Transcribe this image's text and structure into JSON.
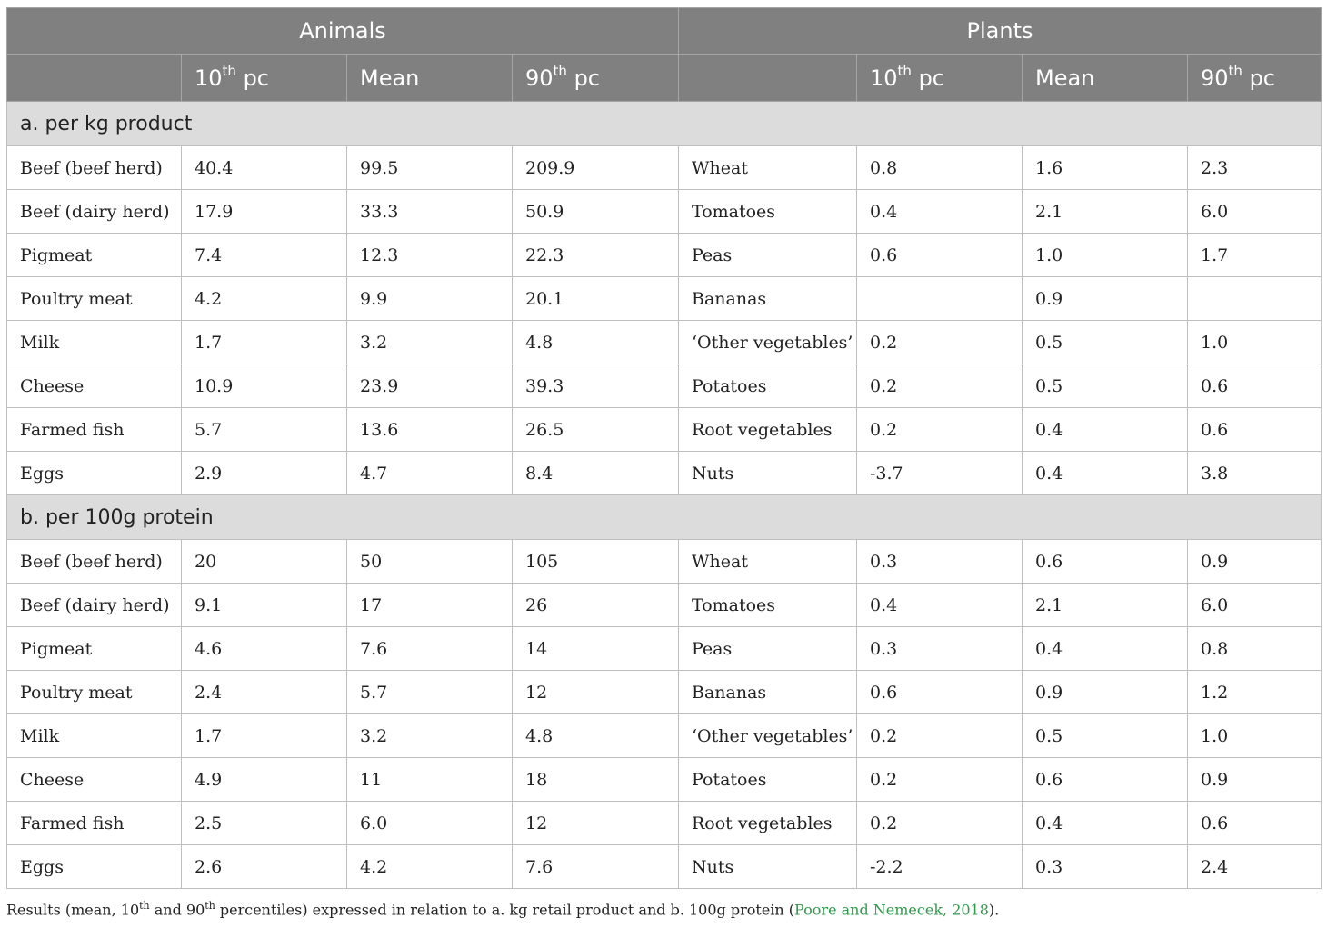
{
  "header": {
    "groups": [
      "Animals",
      "Plants"
    ],
    "columns": {
      "p10_base": "10",
      "p10_sup": "th",
      "p10_tail": " pc",
      "mean": "Mean",
      "p90_base": "90",
      "p90_sup": "th",
      "p90_tail": " pc"
    }
  },
  "sections": [
    {
      "title": "a. per kg product",
      "rows": [
        {
          "animal": "Beef (beef herd)",
          "a10": "40.4",
          "amean": "99.5",
          "a90": "209.9",
          "plant": "Wheat",
          "p10": "0.8",
          "pmean": "1.6",
          "p90": "2.3"
        },
        {
          "animal": "Beef (dairy herd)",
          "a10": "17.9",
          "amean": "33.3",
          "a90": "50.9",
          "plant": "Tomatoes",
          "p10": "0.4",
          "pmean": "2.1",
          "p90": "6.0"
        },
        {
          "animal": "Pigmeat",
          "a10": "7.4",
          "amean": "12.3",
          "a90": "22.3",
          "plant": "Peas",
          "p10": "0.6",
          "pmean": "1.0",
          "p90": "1.7"
        },
        {
          "animal": "Poultry meat",
          "a10": "4.2",
          "amean": "9.9",
          "a90": "20.1",
          "plant": "Bananas",
          "p10": "",
          "pmean": "0.9",
          "p90": ""
        },
        {
          "animal": "Milk",
          "a10": "1.7",
          "amean": "3.2",
          "a90": "4.8",
          "plant": "‘Other vegetables’",
          "p10": "0.2",
          "pmean": "0.5",
          "p90": "1.0"
        },
        {
          "animal": "Cheese",
          "a10": "10.9",
          "amean": "23.9",
          "a90": "39.3",
          "plant": "Potatoes",
          "p10": "0.2",
          "pmean": "0.5",
          "p90": "0.6"
        },
        {
          "animal": "Farmed fish",
          "a10": "5.7",
          "amean": "13.6",
          "a90": "26.5",
          "plant": "Root vegetables",
          "p10": "0.2",
          "pmean": "0.4",
          "p90": "0.6"
        },
        {
          "animal": "Eggs",
          "a10": "2.9",
          "amean": "4.7",
          "a90": "8.4",
          "plant": "Nuts",
          "p10": "-3.7",
          "pmean": "0.4",
          "p90": "3.8"
        }
      ]
    },
    {
      "title": "b. per 100g protein",
      "rows": [
        {
          "animal": "Beef (beef herd)",
          "a10": "20",
          "amean": "50",
          "a90": "105",
          "plant": "Wheat",
          "p10": "0.3",
          "pmean": "0.6",
          "p90": "0.9"
        },
        {
          "animal": "Beef (dairy herd)",
          "a10": "9.1",
          "amean": "17",
          "a90": "26",
          "plant": "Tomatoes",
          "p10": "0.4",
          "pmean": "2.1",
          "p90": "6.0"
        },
        {
          "animal": "Pigmeat",
          "a10": "4.6",
          "amean": "7.6",
          "a90": "14",
          "plant": "Peas",
          "p10": "0.3",
          "pmean": "0.4",
          "p90": "0.8"
        },
        {
          "animal": "Poultry meat",
          "a10": "2.4",
          "amean": "5.7",
          "a90": "12",
          "plant": "Bananas",
          "p10": "0.6",
          "pmean": "0.9",
          "p90": "1.2"
        },
        {
          "animal": "Milk",
          "a10": "1.7",
          "amean": "3.2",
          "a90": "4.8",
          "plant": "‘Other vegetables’",
          "p10": "0.2",
          "pmean": "0.5",
          "p90": "1.0"
        },
        {
          "animal": "Cheese",
          "a10": "4.9",
          "amean": "11",
          "a90": "18",
          "plant": "Potatoes",
          "p10": "0.2",
          "pmean": "0.6",
          "p90": "0.9"
        },
        {
          "animal": "Farmed fish",
          "a10": "2.5",
          "amean": "6.0",
          "a90": "12",
          "plant": "Root vegetables",
          "p10": "0.2",
          "pmean": "0.4",
          "p90": "0.6"
        },
        {
          "animal": "Eggs",
          "a10": "2.6",
          "amean": "4.2",
          "a90": "7.6",
          "plant": "Nuts",
          "p10": "-2.2",
          "pmean": "0.3",
          "p90": "2.4"
        }
      ]
    }
  ],
  "caption": {
    "part1": "Results (mean, 10",
    "sup1": "th",
    "part2": " and 90",
    "sup2": "th",
    "part3": " percentiles) expressed in relation to a. kg retail product and b. 100g protein (",
    "citation": "Poore and Nemecek, 2018",
    "part4": ")."
  },
  "colors": {
    "header_bg": "#808080",
    "section_bg": "#dcdcdc",
    "grid": "#bfbfbf",
    "citation_link": "#2e9a4a"
  }
}
